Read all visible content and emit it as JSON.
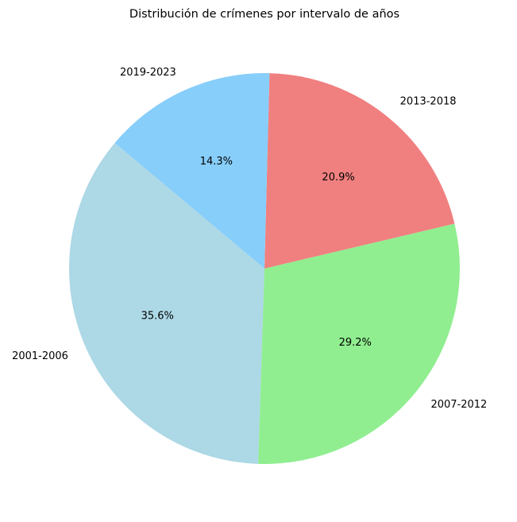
{
  "chart_data": {
    "type": "pie",
    "title": "Distribución de crímenes por intervalo de años",
    "categories": [
      "2001-2006",
      "2007-2012",
      "2013-2018",
      "2019-2023"
    ],
    "values": [
      35.6,
      29.2,
      20.9,
      14.3
    ],
    "percent_labels": [
      "35.6%",
      "29.2%",
      "20.9%",
      "14.3%"
    ],
    "colors": [
      "#add8e6",
      "#90ee90",
      "#f08080",
      "#87cefa"
    ],
    "start_angle_deg": 140,
    "direction": "counterclockwise",
    "legend": "none"
  }
}
